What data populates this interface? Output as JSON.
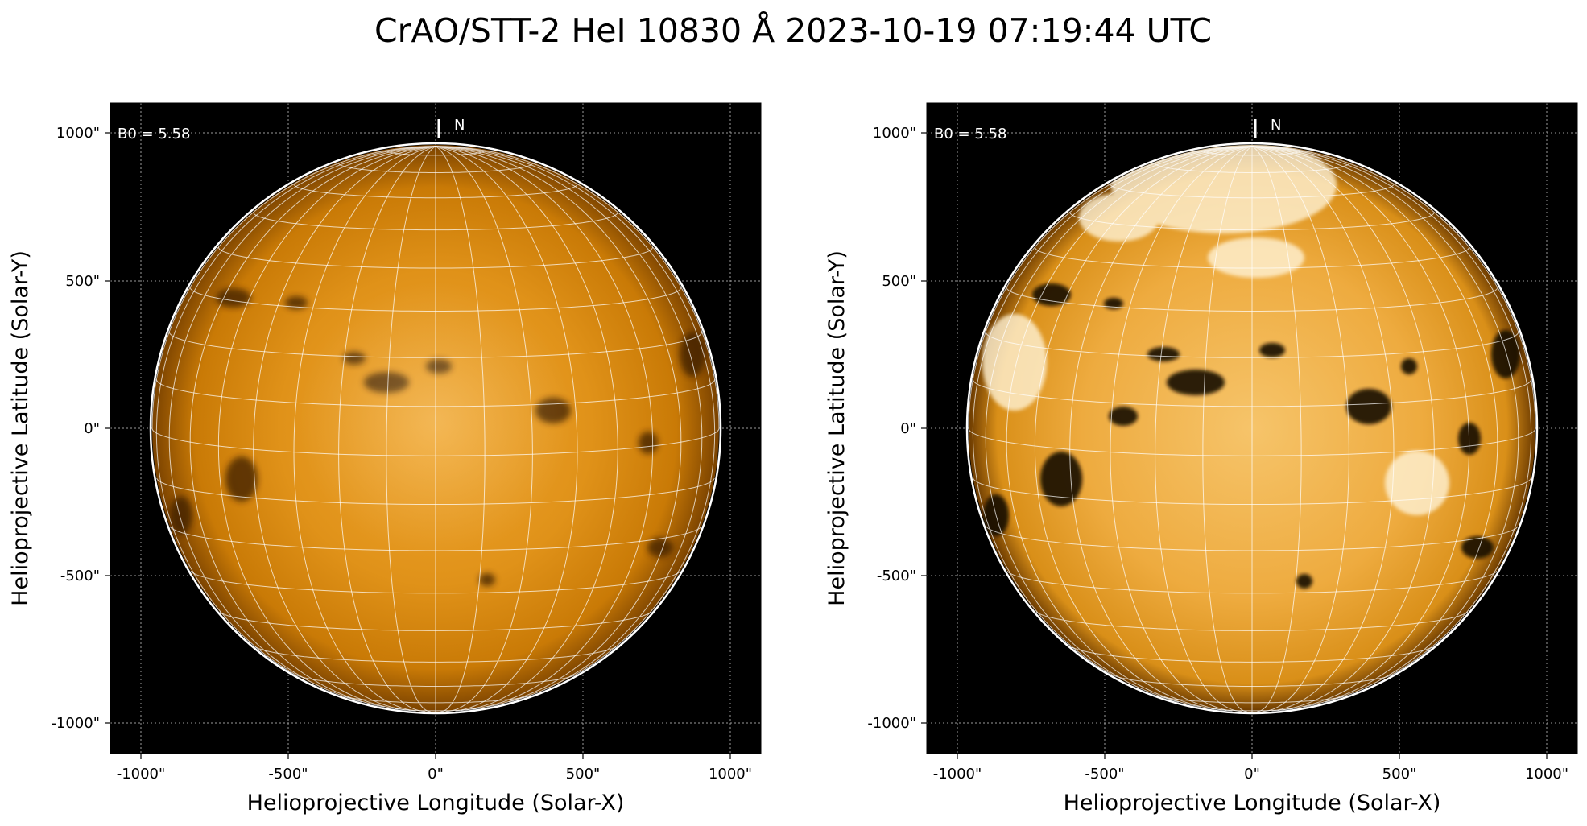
{
  "figure": {
    "title": "CrAO/STT-2 HeI 10830 Å 2023-10-19 07:19:44 UTC"
  },
  "panels": [
    {
      "id": "left",
      "description_variant": "standard contrast",
      "xlabel": "Helioprojective Longitude (Solar-X)",
      "ylabel": "Helioprojective Latitude (Solar-Y)",
      "x_ticks": [
        "-1000\"",
        "-500\"",
        "0\"",
        "500\"",
        "1000\""
      ],
      "y_ticks": [
        "1000\"",
        "500\"",
        "0\"",
        "-500\"",
        "-1000\""
      ],
      "b0_label": "B0 = 5.58",
      "north_label": "N"
    },
    {
      "id": "right",
      "description_variant": "enhanced contrast",
      "xlabel": "Helioprojective Longitude (Solar-X)",
      "ylabel": "Helioprojective Latitude (Solar-Y)",
      "x_ticks": [
        "-1000\"",
        "-500\"",
        "0\"",
        "500\"",
        "1000\""
      ],
      "y_ticks": [
        "1000\"",
        "500\"",
        "0\"",
        "-500\"",
        "-1000\""
      ],
      "b0_label": "B0 = 5.58",
      "north_label": "N"
    }
  ],
  "colors": {
    "background": "#000000",
    "disk_base_left": "#d98a0a",
    "disk_base_right": "#e9a127",
    "grid": "#ffffff",
    "limb": "#ffffff"
  }
}
